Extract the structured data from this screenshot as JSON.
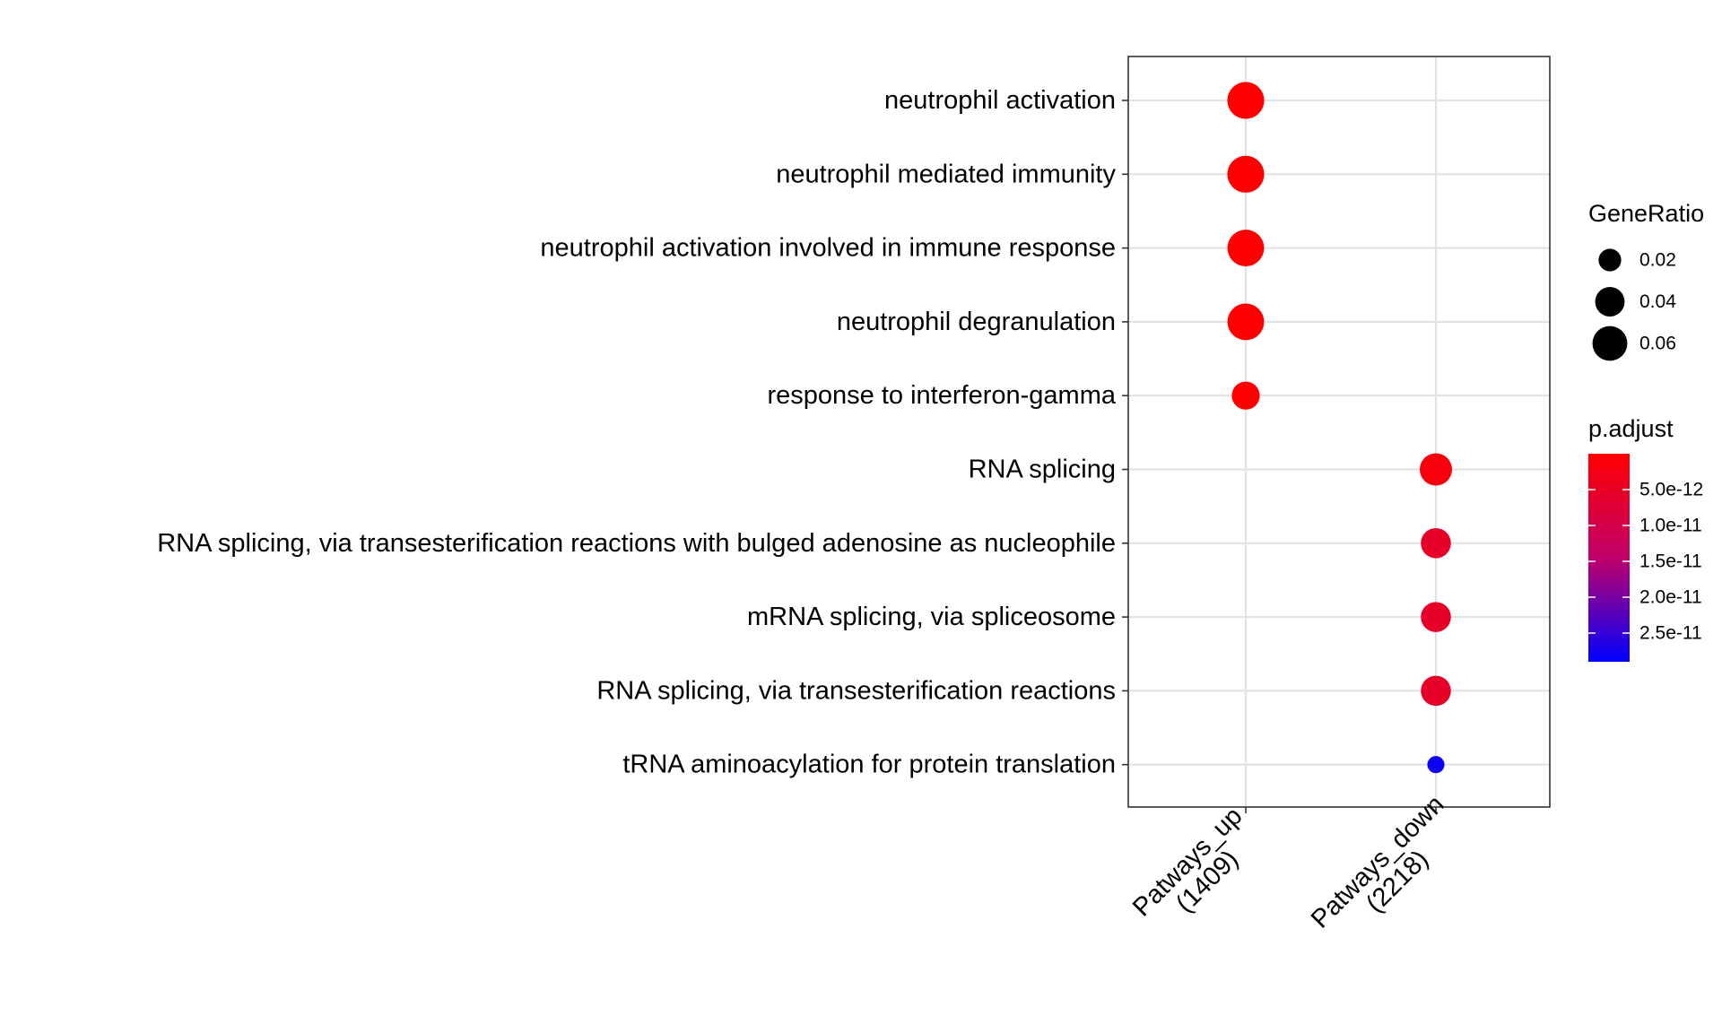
{
  "chart_data": {
    "type": "scatter",
    "title": "",
    "xlabel": "",
    "ylabel": "",
    "x_categories": [
      "Patways_up\n(1409)",
      "Patways_down\n(2218)"
    ],
    "y_categories": [
      "neutrophil activation",
      "neutrophil mediated immunity",
      "neutrophil activation involved in immune response",
      "neutrophil degranulation",
      "response to interferon-gamma",
      "RNA splicing",
      "RNA splicing, via transesterification reactions with bulged adenosine as nucleophile",
      "mRNA splicing, via spliceosome",
      "RNA splicing, via transesterification reactions",
      "tRNA aminoacylation for protein translation"
    ],
    "points": [
      {
        "x": "Patways_up\n(1409)",
        "y": "neutrophil activation",
        "gene_ratio": 0.069,
        "p_adjust": 1e-13
      },
      {
        "x": "Patways_up\n(1409)",
        "y": "neutrophil mediated immunity",
        "gene_ratio": 0.069,
        "p_adjust": 1e-13
      },
      {
        "x": "Patways_up\n(1409)",
        "y": "neutrophil activation involved in immune response",
        "gene_ratio": 0.068,
        "p_adjust": 1e-13
      },
      {
        "x": "Patways_up\n(1409)",
        "y": "neutrophil degranulation",
        "gene_ratio": 0.068,
        "p_adjust": 1e-13
      },
      {
        "x": "Patways_up\n(1409)",
        "y": "response to interferon-gamma",
        "gene_ratio": 0.035,
        "p_adjust": 1e-13
      },
      {
        "x": "Patways_down\n(2218)",
        "y": "RNA splicing",
        "gene_ratio": 0.05,
        "p_adjust": 1.5e-12
      },
      {
        "x": "Patways_down\n(2218)",
        "y": "RNA splicing, via transesterification reactions with bulged adenosine as nucleophile",
        "gene_ratio": 0.042,
        "p_adjust": 5.5e-12
      },
      {
        "x": "Patways_down\n(2218)",
        "y": "mRNA splicing, via spliceosome",
        "gene_ratio": 0.042,
        "p_adjust": 5.5e-12
      },
      {
        "x": "Patways_down\n(2218)",
        "y": "RNA splicing, via transesterification reactions",
        "gene_ratio": 0.042,
        "p_adjust": 5.5e-12
      },
      {
        "x": "Patways_down\n(2218)",
        "y": "tRNA aminoacylation for protein translation",
        "gene_ratio": 0.009,
        "p_adjust": 2.8e-11
      }
    ],
    "size_legend": {
      "title": "GeneRatio",
      "breaks": [
        0.02,
        0.04,
        0.06
      ],
      "labels": [
        "0.02",
        "0.04",
        "0.06"
      ]
    },
    "color_legend": {
      "title": "p.adjust",
      "low_color": "#ff0000",
      "high_color": "#0000ff",
      "domain": [
        0,
        2.9e-11
      ],
      "breaks": [
        5e-12,
        1e-11,
        1.5e-11,
        2e-11,
        2.5e-11
      ],
      "labels": [
        "5.0e-12",
        "1.0e-11",
        "1.5e-11",
        "2.0e-11",
        "2.5e-11"
      ]
    },
    "grid": true,
    "legend_position": "right"
  }
}
